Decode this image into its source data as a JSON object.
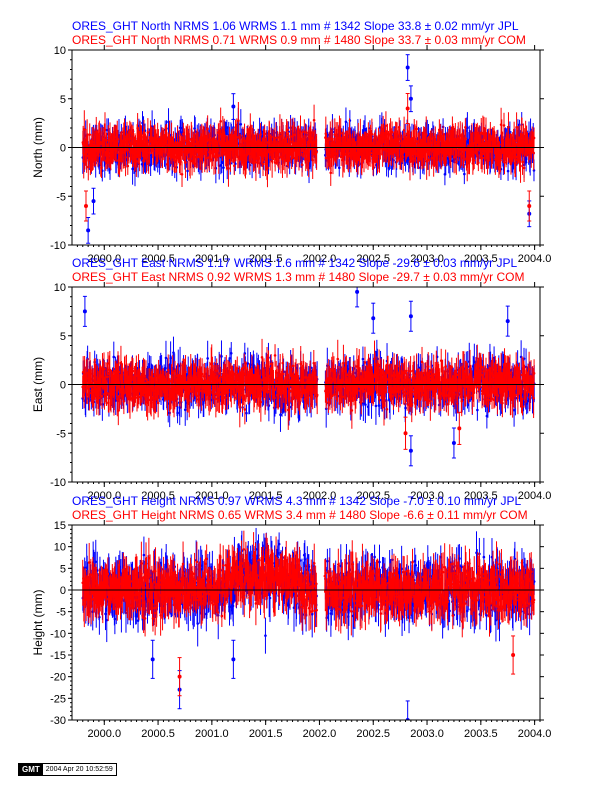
{
  "chart_data": [
    {
      "type": "scatter",
      "panel": "north",
      "ylabel": "North (mm)",
      "ylim": [
        -10,
        10
      ],
      "yticks": [
        -10,
        -5,
        0,
        5,
        10
      ],
      "xlim": [
        1999.7,
        2004.05
      ],
      "xticks": [
        "2000.0",
        "2000.5",
        "2001.0",
        "2001.5",
        "2002.0",
        "2002.5",
        "2003.0",
        "2003.5",
        "2004.0"
      ],
      "grid": false,
      "series": [
        {
          "name": "ORES_GHT North NRMS 1.06 WRMS  1.1 mm # 1342 Slope   33.8 ±  0.02 mm/yr JPL",
          "color": "#0000ff",
          "spread": 1.8,
          "errbar": 1.2,
          "start": 1999.8,
          "end": 2004.0,
          "gap": [
            2001.98,
            2002.05
          ],
          "outliers": [
            {
              "x": 1999.85,
              "y": -8.5
            },
            {
              "x": 2001.2,
              "y": 4.2
            },
            {
              "x": 2002.82,
              "y": 8.2
            },
            {
              "x": 2002.85,
              "y": 5.0
            },
            {
              "x": 2003.95,
              "y": -6.8
            },
            {
              "x": 1999.9,
              "y": -5.5
            }
          ]
        },
        {
          "name": "ORES_GHT North NRMS 0.71 WRMS  0.9 mm # 1480 Slope   33.7 ±  0.03 mm/yr COM",
          "color": "#ff0000",
          "spread": 1.5,
          "errbar": 1.4,
          "start": 1999.8,
          "end": 2004.0,
          "gap": [
            2001.98,
            2002.05
          ],
          "outliers": [
            {
              "x": 1999.83,
              "y": -6.0
            },
            {
              "x": 2003.95,
              "y": -6.0
            },
            {
              "x": 2002.82,
              "y": 4.0
            }
          ]
        }
      ]
    },
    {
      "type": "scatter",
      "panel": "east",
      "ylabel": "East (mm)",
      "ylim": [
        -10,
        10
      ],
      "yticks": [
        -10,
        -5,
        0,
        5,
        10
      ],
      "xlim": [
        1999.7,
        2004.05
      ],
      "xticks": [
        "2000.0",
        "2000.5",
        "2001.0",
        "2001.5",
        "2002.0",
        "2002.5",
        "2003.0",
        "2003.5",
        "2004.0"
      ],
      "grid": false,
      "series": [
        {
          "name": "ORES_GHT East NRMS 1.17 WRMS  1.6 mm # 1342 Slope -29.6 ±  0.03 mm/yr JPL",
          "color": "#0000ff",
          "spread": 2.0,
          "errbar": 1.4,
          "start": 1999.8,
          "end": 2004.0,
          "gap": [
            2001.98,
            2002.05
          ],
          "outliers": [
            {
              "x": 1999.82,
              "y": 7.5
            },
            {
              "x": 2002.35,
              "y": 9.5
            },
            {
              "x": 2002.5,
              "y": 6.8
            },
            {
              "x": 2002.85,
              "y": -6.8
            },
            {
              "x": 2003.25,
              "y": -6.0
            },
            {
              "x": 2003.75,
              "y": 6.5
            },
            {
              "x": 2002.85,
              "y": 7.0
            }
          ]
        },
        {
          "name": "ORES_GHT East NRMS 0.92 WRMS  1.3 mm # 1480 Slope -29.7 ±  0.03 mm/yr COM",
          "color": "#ff0000",
          "spread": 1.7,
          "errbar": 1.5,
          "start": 1999.8,
          "end": 2004.0,
          "gap": [
            2001.98,
            2002.05
          ],
          "outliers": [
            {
              "x": 2002.8,
              "y": -5.0
            },
            {
              "x": 2003.3,
              "y": -4.5
            }
          ]
        }
      ]
    },
    {
      "type": "scatter",
      "panel": "height",
      "ylabel": "Height (mm)",
      "ylim": [
        -30,
        15
      ],
      "yticks": [
        -30,
        -25,
        -20,
        -15,
        -10,
        -5,
        0,
        5,
        10,
        15
      ],
      "xlim": [
        1999.7,
        2004.05
      ],
      "xticks": [
        "2000.0",
        "2000.5",
        "2001.0",
        "2001.5",
        "2002.0",
        "2002.5",
        "2003.0",
        "2003.5",
        "2004.0"
      ],
      "grid": false,
      "series": [
        {
          "name": "ORES_GHT Height NRMS 0.97 WRMS  4.3 mm # 1342 Slope   -7.0 ±  0.10 mm/yr JPL",
          "color": "#0000ff",
          "spread": 5.5,
          "errbar": 4.0,
          "start": 1999.8,
          "end": 2004.0,
          "gap": [
            2001.98,
            2002.05
          ],
          "outliers": [
            {
              "x": 2000.7,
              "y": -23.0
            },
            {
              "x": 2002.82,
              "y": -30.0
            },
            {
              "x": 2001.2,
              "y": -16.0
            },
            {
              "x": 2000.45,
              "y": -16.0
            }
          ]
        },
        {
          "name": "ORES_GHT Height NRMS 0.65 WRMS  3.4 mm # 1480 Slope   -6.6 ±  0.11 mm/yr COM",
          "color": "#ff0000",
          "spread": 4.5,
          "errbar": 4.0,
          "start": 1999.8,
          "end": 2004.0,
          "gap": [
            2001.98,
            2002.05
          ],
          "outliers": [
            {
              "x": 2003.8,
              "y": -15.0
            },
            {
              "x": 2000.7,
              "y": -20.0
            }
          ]
        }
      ]
    }
  ],
  "stamp": {
    "logo": "GMT",
    "text": "2004 Apr 20 10:52:59"
  }
}
